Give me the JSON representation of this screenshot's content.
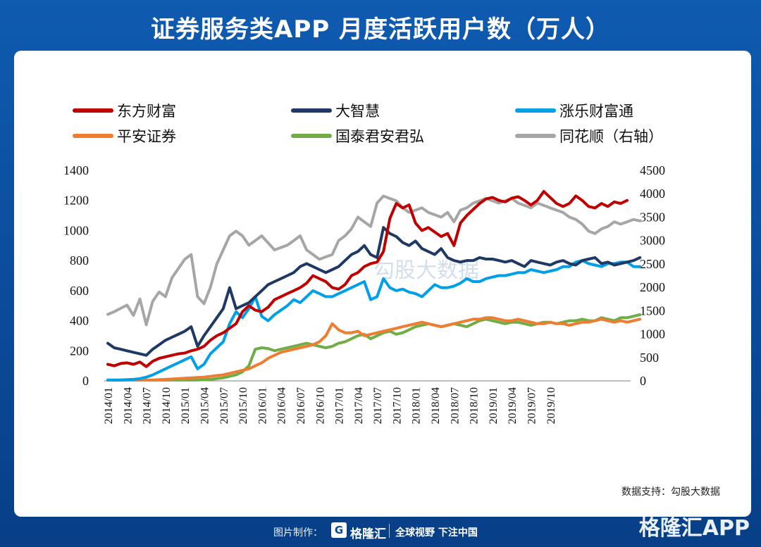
{
  "page": {
    "title": "证券服务类APP 月度活跃用户数（万人）",
    "source": "数据支持：勾股大数据",
    "footer_made_by": "图片制作：",
    "footer_logo_mark": "G",
    "footer_logo_name": "格隆汇",
    "footer_slogan": "全球视野 下注中国",
    "corner_watermark": "格隆汇APP"
  },
  "chart_data": {
    "type": "line",
    "title": "证券服务类APP 月度活跃用户数（万人）",
    "xlabel": "",
    "ylabel": "",
    "ylim": [
      0,
      1400
    ],
    "y2lim": [
      0,
      4500
    ],
    "y_ticks": [
      "0",
      "200",
      "400",
      "600",
      "800",
      "1000",
      "1200",
      "1400"
    ],
    "y2_ticks": [
      "0",
      "500",
      "1000",
      "1500",
      "2000",
      "2500",
      "3000",
      "3500",
      "4000",
      "4500"
    ],
    "x_tick_labels": [
      "2014/01",
      "2014/04",
      "2014/07",
      "2014/10",
      "2015/01",
      "2015/04",
      "2015/07",
      "2015/10",
      "2016/01",
      "2016/04",
      "2016/07",
      "2016/10",
      "2017/01",
      "2017/04",
      "2017/07",
      "2017/10",
      "2018/01",
      "2018/04",
      "2018/07",
      "2018/10",
      "2019/01",
      "2019/04",
      "2019/07",
      "2019/10"
    ],
    "watermark": "勾股大数据",
    "legend_position": "top",
    "grid": false,
    "series": [
      {
        "name": "东方财富",
        "axis": "left",
        "color": "#c00000",
        "values": [
          110,
          100,
          115,
          120,
          110,
          125,
          95,
          130,
          150,
          160,
          170,
          180,
          185,
          200,
          210,
          230,
          270,
          300,
          320,
          350,
          380,
          460,
          500,
          470,
          460,
          490,
          540,
          560,
          580,
          600,
          620,
          650,
          700,
          680,
          660,
          620,
          610,
          640,
          700,
          720,
          760,
          780,
          790,
          860,
          1080,
          1180,
          1150,
          1170,
          1050,
          1000,
          1020,
          990,
          960,
          980,
          900,
          1050,
          1100,
          1140,
          1180,
          1210,
          1220,
          1200,
          1190,
          1215,
          1225,
          1200,
          1170,
          1200,
          1260,
          1220,
          1180,
          1160,
          1180,
          1230,
          1200,
          1160,
          1150,
          1180,
          1160,
          1190,
          1180,
          1200
        ]
      },
      {
        "name": "大智慧",
        "axis": "left",
        "color": "#1f3864",
        "values": [
          250,
          220,
          210,
          200,
          190,
          180,
          170,
          210,
          240,
          270,
          290,
          310,
          330,
          360,
          230,
          300,
          360,
          420,
          480,
          620,
          480,
          500,
          520,
          560,
          600,
          640,
          660,
          680,
          700,
          720,
          760,
          780,
          760,
          740,
          720,
          740,
          760,
          800,
          840,
          860,
          900,
          840,
          820,
          1020,
          980,
          960,
          920,
          900,
          930,
          880,
          860,
          840,
          880,
          820,
          800,
          790,
          800,
          800,
          820,
          810,
          810,
          800,
          790,
          800,
          780,
          760,
          800,
          790,
          780,
          770,
          790,
          800,
          780,
          770,
          800,
          810,
          820,
          780,
          790,
          770,
          780,
          790,
          800,
          820
        ]
      },
      {
        "name": "涨乐财富通",
        "axis": "left",
        "color": "#00a0e9",
        "values": [
          5,
          5,
          6,
          8,
          10,
          15,
          25,
          40,
          60,
          80,
          100,
          120,
          140,
          160,
          80,
          110,
          180,
          220,
          260,
          380,
          460,
          420,
          480,
          560,
          430,
          400,
          440,
          470,
          500,
          540,
          520,
          560,
          600,
          580,
          560,
          560,
          580,
          600,
          620,
          640,
          660,
          540,
          560,
          680,
          620,
          600,
          610,
          590,
          580,
          560,
          600,
          640,
          620,
          620,
          630,
          650,
          680,
          660,
          660,
          680,
          690,
          700,
          700,
          710,
          720,
          720,
          740,
          730,
          720,
          730,
          740,
          760,
          760,
          790,
          800,
          780,
          770,
          760,
          780,
          780,
          790,
          790,
          760,
          760
        ]
      },
      {
        "name": "平安证券",
        "axis": "left",
        "color": "#ed7d31",
        "values": [
          5,
          5,
          5,
          5,
          5,
          5,
          5,
          5,
          8,
          10,
          12,
          15,
          18,
          20,
          22,
          25,
          30,
          35,
          40,
          50,
          60,
          70,
          80,
          100,
          120,
          150,
          170,
          190,
          200,
          210,
          220,
          230,
          240,
          260,
          300,
          380,
          340,
          320,
          320,
          330,
          300,
          310,
          320,
          330,
          340,
          350,
          360,
          370,
          380,
          390,
          380,
          370,
          360,
          370,
          380,
          390,
          400,
          410,
          410,
          420,
          420,
          410,
          400,
          400,
          410,
          400,
          390,
          380,
          380,
          390,
          380,
          380,
          370,
          380,
          390,
          390,
          400,
          410,
          400,
          390,
          400,
          390,
          400,
          410
        ]
      },
      {
        "name": "国泰君安君弘",
        "axis": "left",
        "color": "#70ad47",
        "values": [
          5,
          5,
          5,
          5,
          5,
          5,
          5,
          5,
          5,
          5,
          5,
          5,
          5,
          5,
          5,
          8,
          10,
          15,
          20,
          30,
          40,
          60,
          100,
          210,
          220,
          215,
          200,
          210,
          220,
          230,
          240,
          250,
          240,
          230,
          220,
          230,
          250,
          260,
          280,
          300,
          310,
          280,
          300,
          320,
          330,
          310,
          320,
          340,
          360,
          370,
          380,
          370,
          360,
          370,
          380,
          370,
          360,
          380,
          400,
          410,
          400,
          390,
          380,
          390,
          390,
          380,
          370,
          380,
          390,
          390,
          380,
          390,
          400,
          400,
          410,
          400,
          400,
          420,
          410,
          400,
          420,
          420,
          430,
          440
        ]
      },
      {
        "name": "同花顺（右轴）",
        "axis": "right",
        "color": "#a6a6a6",
        "values": [
          1420,
          1480,
          1550,
          1620,
          1400,
          1750,
          1200,
          1700,
          1900,
          1800,
          2200,
          2400,
          2600,
          2700,
          1800,
          1650,
          2000,
          2500,
          2800,
          3100,
          3200,
          3100,
          2900,
          3000,
          3100,
          2950,
          2800,
          2850,
          2900,
          3000,
          3100,
          2800,
          2700,
          2600,
          2650,
          2700,
          3000,
          3100,
          3250,
          3500,
          3400,
          3300,
          3800,
          3950,
          3900,
          3850,
          3700,
          3600,
          3650,
          3700,
          3600,
          3550,
          3500,
          3600,
          3400,
          3650,
          3700,
          3800,
          3850,
          3900,
          3850,
          3800,
          3850,
          3900,
          3800,
          3750,
          3700,
          3800,
          3750,
          3700,
          3650,
          3600,
          3500,
          3450,
          3350,
          3200,
          3150,
          3250,
          3300,
          3400,
          3350,
          3400,
          3450,
          3420
        ]
      }
    ]
  }
}
